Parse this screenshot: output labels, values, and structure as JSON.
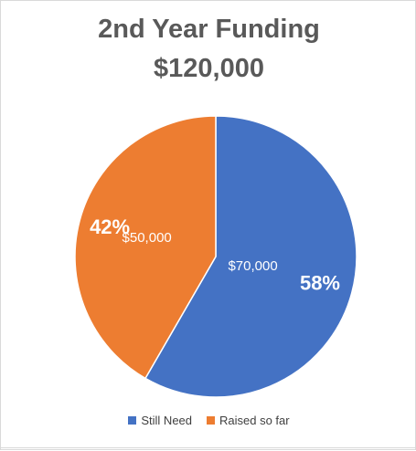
{
  "chart_data": {
    "type": "pie",
    "title": "2nd Year Funding",
    "subtitle": "$120,000",
    "slices": [
      {
        "name": "Still Need",
        "value": 70000,
        "value_label": "$70,000",
        "percent_label": "58%",
        "color": "#4472C4"
      },
      {
        "name": "Raised so far",
        "value": 50000,
        "value_label": "$50,000",
        "percent_label": "42%",
        "color": "#ED7D31"
      }
    ],
    "legend_position": "bottom"
  }
}
